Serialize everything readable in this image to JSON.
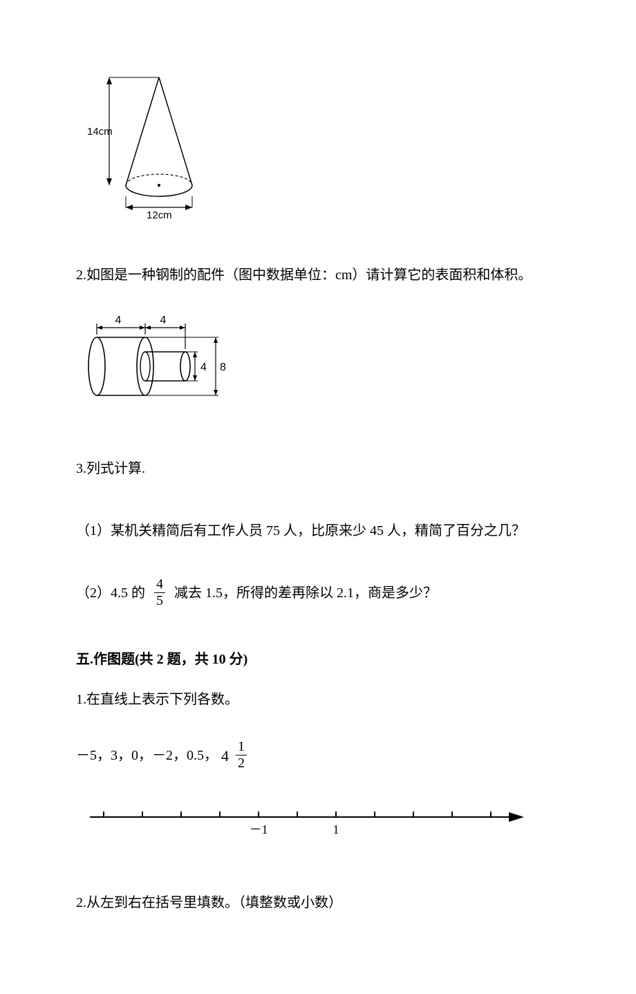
{
  "cone": {
    "height_label": "14cm",
    "diameter_label": "12cm",
    "stroke": "#000000",
    "label_fontsize": 15
  },
  "q2": {
    "text": "2.如图是一种钢制的配件（图中数据单位：cm）请计算它的表面积和体积。"
  },
  "cylinder": {
    "big_height_label": "8",
    "small_diam_label": "4",
    "top_left_label": "4",
    "top_right_label": "4",
    "stroke": "#000000",
    "label_fontsize": 16
  },
  "q3": {
    "title": "3.列式计算.",
    "p1": "（1）某机关精简后有工作人员 75 人，比原来少 45 人，精简了百分之几？",
    "p2_prefix": "（2）4.5 的",
    "p2_frac_num": "4",
    "p2_frac_den": "5",
    "p2_suffix": "减去 1.5，所得的差再除以 2.1，商是多少？"
  },
  "section5": {
    "heading": "五.作图题(共 2 题，共 10 分)"
  },
  "s5q1": {
    "title": "1.在直线上表示下列各数。",
    "list_prefix": "－5，3，0，－2，0.5，",
    "mixed_whole": "4",
    "mixed_num": "1",
    "mixed_den": "2"
  },
  "numberline": {
    "label_neg1": "－1",
    "label_pos1": "1",
    "ticks": [
      -5,
      -4,
      -3,
      -2,
      -1,
      0,
      1,
      2,
      3,
      4,
      5
    ],
    "stroke": "#000000",
    "label_fontsize": 18
  },
  "s5q2": {
    "title": "2.从左到右在括号里填数。（填整数或小数）"
  }
}
